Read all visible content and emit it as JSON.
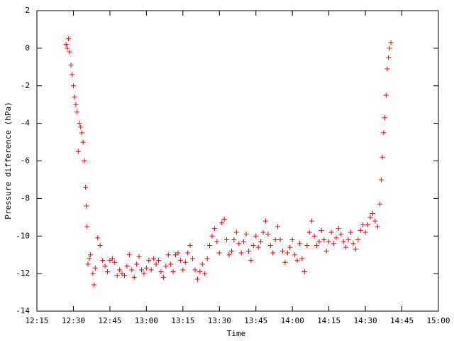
{
  "chart_data": {
    "type": "scatter",
    "xlabel": "Time",
    "ylabel": "Pressure difference (hPa)",
    "color": "#ff0000",
    "xlim": [
      735,
      900
    ],
    "xticks": [
      {
        "value": 735,
        "label": "12:15"
      },
      {
        "value": 750,
        "label": "12:30"
      },
      {
        "value": 765,
        "label": "12:45"
      },
      {
        "value": 780,
        "label": "13:00"
      },
      {
        "value": 795,
        "label": "13:15"
      },
      {
        "value": 810,
        "label": "13:30"
      },
      {
        "value": 825,
        "label": "13:45"
      },
      {
        "value": 840,
        "label": "14:00"
      },
      {
        "value": 855,
        "label": "14:15"
      },
      {
        "value": 870,
        "label": "14:30"
      },
      {
        "value": 885,
        "label": "14:45"
      },
      {
        "value": 900,
        "label": "15:00"
      }
    ],
    "ylim": [
      -14,
      2
    ],
    "yticks": [
      -14,
      -12,
      -10,
      -8,
      -6,
      -4,
      -2,
      0,
      2
    ],
    "x": [
      747,
      747.5,
      748,
      748.5,
      749,
      749.5,
      750,
      750.5,
      751,
      751.5,
      752,
      752.5,
      753,
      753.5,
      754,
      754.5,
      755,
      755.3,
      755.6,
      756,
      756.5,
      757,
      758,
      758.5,
      759,
      760,
      761,
      762,
      763,
      764,
      765,
      766,
      767,
      768,
      769,
      770,
      771,
      772,
      773,
      774,
      775,
      776,
      777,
      778,
      779,
      780,
      781,
      782,
      783,
      784,
      785,
      786,
      787,
      788,
      789,
      790,
      791,
      792,
      793,
      794,
      795,
      796,
      797,
      798,
      799,
      800,
      801,
      802,
      803,
      804,
      805,
      806,
      807,
      808,
      809,
      810,
      811,
      812,
      813,
      814,
      815,
      816,
      817,
      818,
      819,
      820,
      821,
      822,
      823,
      824,
      825,
      826,
      827,
      828,
      829,
      830,
      831,
      832,
      833,
      834,
      835,
      836,
      837,
      838,
      839,
      840,
      841,
      842,
      843,
      844,
      845,
      846,
      847,
      848,
      849,
      850,
      851,
      852,
      853,
      854,
      855,
      856,
      857,
      858,
      859,
      860,
      861,
      862,
      863,
      864,
      865,
      866,
      867,
      868,
      869,
      870,
      871,
      872,
      873,
      874,
      875,
      876,
      876.5,
      877,
      877.5,
      878,
      878.5,
      879,
      879.5,
      880,
      880.5
    ],
    "values": [
      0.2,
      0,
      0.5,
      -0.2,
      -0.9,
      -1.4,
      -2.0,
      -2.6,
      -3.0,
      -3.4,
      -5.5,
      -4.0,
      -4.2,
      -4.5,
      -5.0,
      -6.0,
      -7.4,
      -8.4,
      -9.5,
      -11.5,
      -11.2,
      -11.0,
      -12.0,
      -12.6,
      -11.7,
      -10.1,
      -10.5,
      -11.3,
      -11.6,
      -11.9,
      -11.3,
      -11.2,
      -11.4,
      -12.1,
      -11.8,
      -12.0,
      -12.1,
      -11.6,
      -11.0,
      -11.8,
      -12.2,
      -11.5,
      -11.1,
      -11.8,
      -12.0,
      -11.7,
      -11.3,
      -11.8,
      -11.2,
      -11.5,
      -11.3,
      -11.9,
      -12.2,
      -11.6,
      -11.0,
      -11.5,
      -11.9,
      -11.0,
      -10.9,
      -11.3,
      -11.8,
      -11.4,
      -10.9,
      -10.5,
      -11.2,
      -11.8,
      -12.3,
      -11.9,
      -11.5,
      -12.0,
      -11.2,
      -10.5,
      -10.0,
      -9.6,
      -10.3,
      -10.9,
      -9.3,
      -9.1,
      -10.2,
      -11.0,
      -10.8,
      -10.2,
      -9.8,
      -10.4,
      -10.9,
      -10.3,
      -9.9,
      -10.8,
      -11.3,
      -10.5,
      -10.0,
      -10.6,
      -10.3,
      -9.8,
      -9.2,
      -9.9,
      -10.5,
      -10.9,
      -10.2,
      -9.5,
      -10.2,
      -10.8,
      -11.4,
      -10.9,
      -10.6,
      -10.2,
      -11.0,
      -11.3,
      -10.4,
      -11.2,
      -11.9,
      -10.5,
      -9.8,
      -9.2,
      -10.0,
      -10.5,
      -10.3,
      -9.7,
      -10.2,
      -10.8,
      -10.3,
      -9.8,
      -10.4,
      -10.1,
      -9.6,
      -9.9,
      -10.3,
      -10.6,
      -10.2,
      -9.8,
      -10.4,
      -10.7,
      -10.2,
      -9.7,
      -9.4,
      -9.8,
      -9.4,
      -9.0,
      -8.8,
      -9.2,
      -9.5,
      -8.3,
      -7.0,
      -5.8,
      -4.5,
      -3.7,
      -2.5,
      -1.1,
      -0.5,
      0,
      0.3
    ]
  }
}
